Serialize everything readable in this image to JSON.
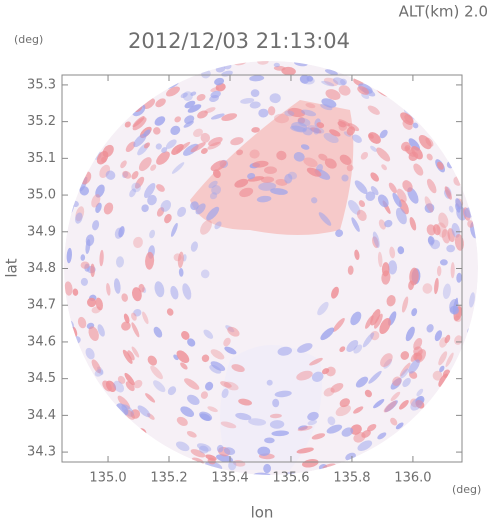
{
  "chart_data": {
    "type": "map",
    "title": "2012/12/03 21:13:04",
    "altitude_label": "ALT(km) 2.0",
    "x_label": "lon",
    "y_label": "lat",
    "x_unit_label": "(deg)",
    "y_unit_label": "(deg)",
    "xlim": [
      134.849,
      136.161
    ],
    "ylim": [
      34.273,
      35.327
    ],
    "xticks": [
      {
        "value": 135,
        "label": "135.0"
      },
      135.2,
      135.4,
      135.6,
      135.8,
      {
        "value": 136,
        "label": "136.0"
      }
    ],
    "yticks": [
      34.3,
      34.4,
      34.5,
      34.6,
      34.7,
      34.8,
      34.9,
      {
        "value": 35,
        "label": "35.0"
      },
      35.1,
      35.2,
      35.3
    ]
  }
}
